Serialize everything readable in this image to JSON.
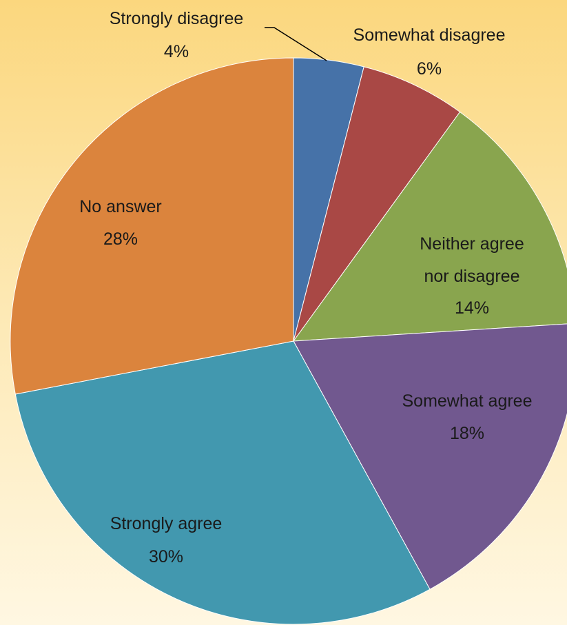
{
  "chart_data": {
    "type": "pie",
    "slices": [
      {
        "label": "Strongly disagree",
        "value": 4,
        "value_label": "4%",
        "color": "#4672a8"
      },
      {
        "label": "Somewhat disagree",
        "value": 6,
        "value_label": "6%",
        "color": "#a94845"
      },
      {
        "label": "Neither agree nor disagree",
        "value": 14,
        "value_label": "14%",
        "color": "#89a54e",
        "label_lines": [
          "Neither agree",
          "nor disagree"
        ]
      },
      {
        "label": "Somewhat agree",
        "value": 18,
        "value_label": "18%",
        "color": "#71588f"
      },
      {
        "label": "Strongly agree",
        "value": 30,
        "value_label": "30%",
        "color": "#4298af"
      },
      {
        "label": "No answer",
        "value": 28,
        "value_label": "28%",
        "color": "#db843d"
      }
    ],
    "start_angle": "12 o'clock",
    "direction": "clockwise",
    "data_labels": "category name and percentage"
  }
}
